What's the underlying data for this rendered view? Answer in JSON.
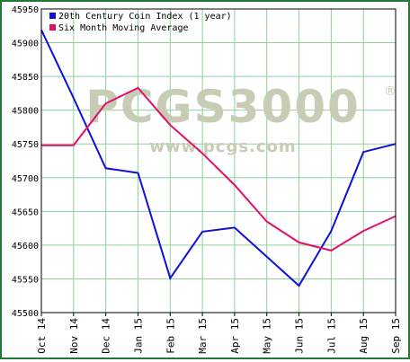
{
  "chart_data": {
    "type": "line",
    "categories": [
      "Oct 14",
      "Nov 14",
      "Dec 14",
      "Jan 15",
      "Feb 15",
      "Mar 15",
      "Apr 15",
      "May 15",
      "Jun 15",
      "Jul 15",
      "Aug 15",
      "Sep 15"
    ],
    "ylim": [
      45500,
      45950
    ],
    "yticks": [
      45550,
      45600,
      45650,
      45700,
      45750,
      45800,
      45850,
      45900,
      45950
    ],
    "ytick_labels": [
      "45550",
      "45600",
      "45650",
      "45700",
      "45750",
      "45800",
      "45850",
      "45900",
      "45950"
    ],
    "grid": true,
    "legend_position": "top-left",
    "series": [
      {
        "name": "20th Century Coin Index (1 year)",
        "color": "#1010dd",
        "values": [
          45919,
          45818,
          45714,
          45707,
          45551,
          45620,
          45626,
          45583,
          45540,
          45621,
          45738,
          45750
        ]
      },
      {
        "name": "Six Month Moving Average",
        "color": "#e0106a",
        "values": [
          45748,
          45748,
          45810,
          45833,
          45778,
          45736,
          45689,
          45635,
          45604,
          45592,
          45621,
          45643
        ]
      }
    ]
  },
  "watermark": {
    "logo": "PCGS3000",
    "registered": "®",
    "url": "www.pcgs.com"
  },
  "colors": {
    "frame": "#1f7a3a",
    "grid": "#8fd09a",
    "axis": "#000000",
    "watermark": "#c9ccb4"
  }
}
